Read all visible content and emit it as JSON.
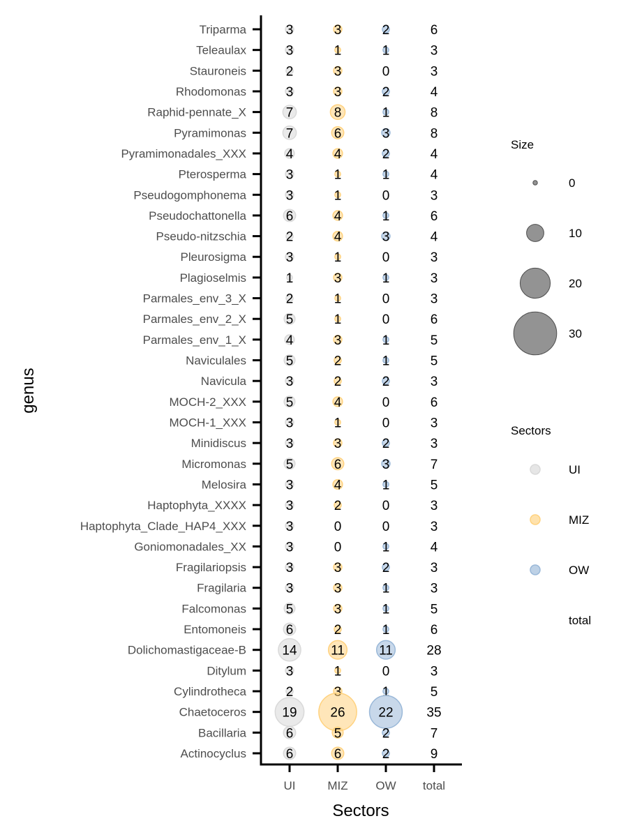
{
  "chart_data": {
    "type": "scatter",
    "xlabel": "Sectors",
    "ylabel": "genus",
    "categories": [
      "UI",
      "MIZ",
      "OW",
      "total"
    ],
    "genera": [
      "Triparma",
      "Teleaulax",
      "Stauroneis",
      "Rhodomonas",
      "Raphid-pennate_X",
      "Pyramimonas",
      "Pyramimonadales_XXX",
      "Pterosperma",
      "Pseudogomphonema",
      "Pseudochattonella",
      "Pseudo-nitzschia",
      "Pleurosigma",
      "Plagioselmis",
      "Parmales_env_3_X",
      "Parmales_env_2_X",
      "Parmales_env_1_X",
      "Naviculales",
      "Navicula",
      "MOCH-2_XXX",
      "MOCH-1_XXX",
      "Minidiscus",
      "Micromonas",
      "Melosira",
      "Haptophyta_XXXX",
      "Haptophyta_Clade_HAP4_XXX",
      "Goniomonadales_XX",
      "Fragilariopsis",
      "Fragilaria",
      "Falcomonas",
      "Entomoneis",
      "Dolichomastigaceae-B",
      "Ditylum",
      "Cylindrotheca",
      "Chaetoceros",
      "Bacillaria",
      "Actinocyclus"
    ],
    "series": [
      {
        "name": "UI",
        "color": "#d9d9d9",
        "values": [
          3,
          3,
          2,
          3,
          7,
          7,
          4,
          3,
          3,
          6,
          2,
          3,
          1,
          2,
          5,
          4,
          5,
          3,
          5,
          3,
          3,
          5,
          3,
          3,
          3,
          3,
          3,
          3,
          5,
          6,
          14,
          3,
          2,
          19,
          6,
          6
        ]
      },
      {
        "name": "MIZ",
        "color": "#ffd27f",
        "values": [
          3,
          1,
          3,
          3,
          8,
          6,
          4,
          1,
          1,
          4,
          4,
          1,
          3,
          1,
          1,
          3,
          2,
          2,
          4,
          1,
          3,
          6,
          4,
          2,
          0,
          0,
          3,
          3,
          3,
          2,
          11,
          1,
          3,
          26,
          5,
          6
        ]
      },
      {
        "name": "OW",
        "color": "#9ab8d8",
        "values": [
          2,
          1,
          0,
          2,
          1,
          3,
          2,
          1,
          0,
          1,
          3,
          0,
          1,
          0,
          0,
          1,
          1,
          2,
          0,
          0,
          2,
          3,
          1,
          0,
          0,
          1,
          2,
          1,
          1,
          1,
          11,
          0,
          1,
          22,
          2,
          2
        ]
      },
      {
        "name": "total",
        "color": "#ffffff",
        "values": [
          6,
          3,
          3,
          4,
          8,
          8,
          4,
          4,
          3,
          6,
          4,
          3,
          3,
          3,
          6,
          5,
          5,
          3,
          6,
          3,
          3,
          7,
          5,
          3,
          3,
          4,
          3,
          3,
          5,
          6,
          28,
          3,
          5,
          35,
          7,
          9
        ]
      }
    ],
    "legend": {
      "size_title": "Size",
      "size_values": [
        "0",
        "10",
        "20",
        "30"
      ],
      "color_title": "Sectors",
      "color_entries": [
        "UI",
        "MIZ",
        "OW",
        "total"
      ],
      "placement": "right"
    }
  }
}
